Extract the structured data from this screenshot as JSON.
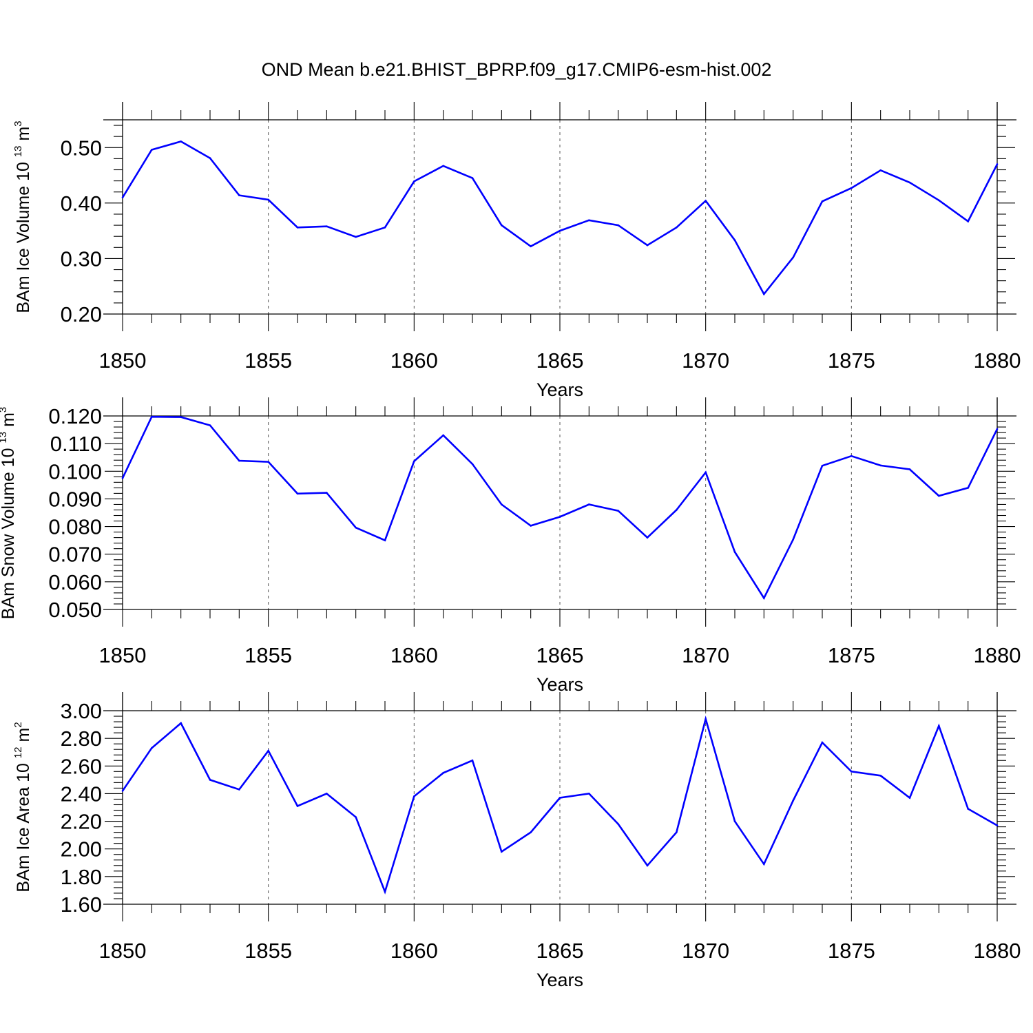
{
  "figure": {
    "title": "OND Mean b.e21.BHIST_BPRP.f09_g17.CMIP6-esm-hist.002",
    "line_color": "#0000ff"
  },
  "chart_data": [
    {
      "type": "line",
      "ylabel": "BAm Ice Volume 10 13 m 3",
      "ylabel_parts": {
        "main": "BAm Ice Volume 10",
        "exp1": "13",
        "mid": " m",
        "exp2": "3"
      },
      "xlabel": "Years",
      "xlim": [
        1850,
        1880
      ],
      "ylim": [
        0.2,
        0.55
      ],
      "yticks": [
        0.2,
        0.3,
        0.4,
        0.5
      ],
      "ytick_labels": [
        "0.20",
        "0.30",
        "0.40",
        "0.50"
      ],
      "xticks": [
        1850,
        1855,
        1860,
        1865,
        1870,
        1875,
        1880
      ],
      "xtick_labels": [
        "1850",
        "1855",
        "1860",
        "1865",
        "1870",
        "1875",
        "1880"
      ],
      "vertical_grid": true,
      "x": [
        1850,
        1851,
        1852,
        1853,
        1854,
        1855,
        1856,
        1857,
        1858,
        1859,
        1860,
        1861,
        1862,
        1863,
        1864,
        1865,
        1866,
        1867,
        1868,
        1869,
        1870,
        1871,
        1872,
        1873,
        1874,
        1875,
        1876,
        1877,
        1878,
        1879,
        1880
      ],
      "y": [
        0.41,
        0.496,
        0.511,
        0.481,
        0.414,
        0.406,
        0.356,
        0.358,
        0.339,
        0.356,
        0.439,
        0.467,
        0.445,
        0.36,
        0.322,
        0.35,
        0.369,
        0.36,
        0.324,
        0.356,
        0.404,
        0.333,
        0.236,
        0.302,
        0.403,
        0.427,
        0.459,
        0.437,
        0.405,
        0.367,
        0.47
      ]
    },
    {
      "type": "line",
      "ylabel": "BAm Snow Volume 10 13 m 3",
      "ylabel_parts": {
        "main": "BAm Snow Volume 10",
        "exp1": "13",
        "mid": " m",
        "exp2": "3"
      },
      "xlabel": "Years",
      "xlim": [
        1850,
        1880
      ],
      "ylim": [
        0.05,
        0.12
      ],
      "yticks": [
        0.05,
        0.06,
        0.07,
        0.08,
        0.09,
        0.1,
        0.11,
        0.12
      ],
      "ytick_labels": [
        "0.050",
        "0.060",
        "0.070",
        "0.080",
        "0.090",
        "0.100",
        "0.110",
        "0.120"
      ],
      "xticks": [
        1850,
        1855,
        1860,
        1865,
        1870,
        1875,
        1880
      ],
      "xtick_labels": [
        "1850",
        "1855",
        "1860",
        "1865",
        "1870",
        "1875",
        "1880"
      ],
      "vertical_grid": true,
      "x": [
        1850,
        1851,
        1852,
        1853,
        1854,
        1855,
        1856,
        1857,
        1858,
        1859,
        1860,
        1861,
        1862,
        1863,
        1864,
        1865,
        1866,
        1867,
        1868,
        1869,
        1870,
        1871,
        1872,
        1873,
        1874,
        1875,
        1876,
        1877,
        1878,
        1879,
        1880
      ],
      "y": [
        0.0975,
        0.1197,
        0.1196,
        0.1166,
        0.1038,
        0.1034,
        0.0919,
        0.0922,
        0.0796,
        0.075,
        0.1036,
        0.113,
        0.1026,
        0.088,
        0.0803,
        0.0835,
        0.088,
        0.0857,
        0.076,
        0.086,
        0.0996,
        0.0708,
        0.0541,
        0.0753,
        0.102,
        0.1055,
        0.1021,
        0.1007,
        0.0911,
        0.094,
        0.1153
      ]
    },
    {
      "type": "line",
      "ylabel": "BAm Ice Area 10 12 m 2",
      "ylabel_parts": {
        "main": "BAm Ice Area 10",
        "exp1": "12",
        "mid": " m",
        "exp2": "2"
      },
      "xlabel": "Years",
      "xlim": [
        1850,
        1880
      ],
      "ylim": [
        1.6,
        3.0
      ],
      "yticks": [
        1.6,
        1.8,
        2.0,
        2.2,
        2.4,
        2.6,
        2.8,
        3.0
      ],
      "ytick_labels": [
        "1.60",
        "1.80",
        "2.00",
        "2.20",
        "2.40",
        "2.60",
        "2.80",
        "3.00"
      ],
      "xticks": [
        1850,
        1855,
        1860,
        1865,
        1870,
        1875,
        1880
      ],
      "xtick_labels": [
        "1850",
        "1855",
        "1860",
        "1865",
        "1870",
        "1875",
        "1880"
      ],
      "vertical_grid": true,
      "x": [
        1850,
        1851,
        1852,
        1853,
        1854,
        1855,
        1856,
        1857,
        1858,
        1859,
        1860,
        1861,
        1862,
        1863,
        1864,
        1865,
        1866,
        1867,
        1868,
        1869,
        1870,
        1871,
        1872,
        1873,
        1874,
        1875,
        1876,
        1877,
        1878,
        1879,
        1880
      ],
      "y": [
        2.42,
        2.73,
        2.91,
        2.5,
        2.43,
        2.71,
        2.31,
        2.4,
        2.23,
        1.69,
        2.38,
        2.55,
        2.64,
        1.98,
        2.12,
        2.37,
        2.4,
        2.18,
        1.88,
        2.12,
        2.94,
        2.2,
        1.89,
        2.35,
        2.77,
        2.56,
        2.53,
        2.37,
        2.89,
        2.29,
        2.17
      ]
    }
  ]
}
